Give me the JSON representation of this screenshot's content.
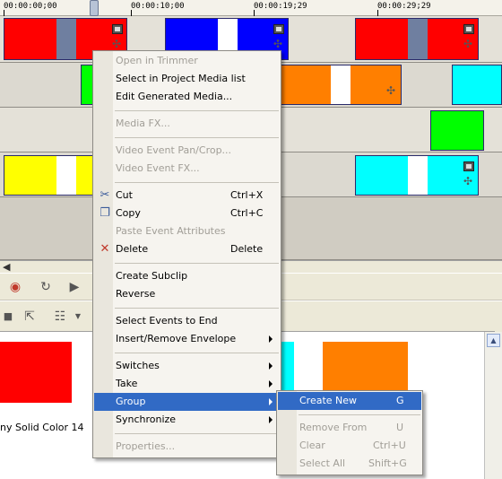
{
  "ruler": {
    "ticks": [
      "00:00:00;00",
      "00:00:10;00",
      "00:00:19;29",
      "00:00:29;29"
    ]
  },
  "media_pane": {
    "caption": "ny Solid Color 14"
  },
  "context_menu": {
    "items": [
      {
        "label": "Open in Trimmer",
        "shortcut": "",
        "disabled": true
      },
      {
        "label": "Select in Project Media list",
        "shortcut": "",
        "disabled": false
      },
      {
        "label": "Edit Generated Media...",
        "shortcut": "",
        "disabled": false
      },
      {
        "label": "Media FX...",
        "shortcut": "",
        "disabled": true
      },
      {
        "label": "Video Event Pan/Crop...",
        "shortcut": "",
        "disabled": true
      },
      {
        "label": "Video Event FX...",
        "shortcut": "",
        "disabled": true
      },
      {
        "label": "Cut",
        "shortcut": "Ctrl+X",
        "disabled": false,
        "icon": "scissors-icon"
      },
      {
        "label": "Copy",
        "shortcut": "Ctrl+C",
        "disabled": false,
        "icon": "copy-icon"
      },
      {
        "label": "Paste Event Attributes",
        "shortcut": "",
        "disabled": true
      },
      {
        "label": "Delete",
        "shortcut": "Delete",
        "disabled": false,
        "icon": "delete-x-icon"
      },
      {
        "label": "Create Subclip",
        "shortcut": "",
        "disabled": false
      },
      {
        "label": "Reverse",
        "shortcut": "",
        "disabled": false
      },
      {
        "label": "Select Events to End",
        "shortcut": "",
        "disabled": false
      },
      {
        "label": "Insert/Remove Envelope",
        "shortcut": "",
        "disabled": false,
        "submenu": true
      },
      {
        "label": "Switches",
        "shortcut": "",
        "disabled": false,
        "submenu": true
      },
      {
        "label": "Take",
        "shortcut": "",
        "disabled": false,
        "submenu": true
      },
      {
        "label": "Group",
        "shortcut": "",
        "disabled": false,
        "submenu": true,
        "highlighted": true
      },
      {
        "label": "Synchronize",
        "shortcut": "",
        "disabled": false,
        "submenu": true
      },
      {
        "label": "Properties...",
        "shortcut": "",
        "disabled": true
      }
    ]
  },
  "group_submenu": {
    "items": [
      {
        "label": "Create New",
        "shortcut": "G",
        "disabled": false,
        "highlighted": true
      },
      {
        "label": "Remove From",
        "shortcut": "U",
        "disabled": true
      },
      {
        "label": "Clear",
        "shortcut": "Ctrl+U",
        "disabled": true
      },
      {
        "label": "Select All",
        "shortcut": "Shift+G",
        "disabled": true
      }
    ]
  },
  "colors": {
    "highlight": "#316ac5",
    "red": "#ff0000",
    "blue": "#0000ff",
    "green": "#00ff00",
    "orange": "#ff7f00",
    "cyan": "#00ffff",
    "yellow": "#ffff00"
  }
}
